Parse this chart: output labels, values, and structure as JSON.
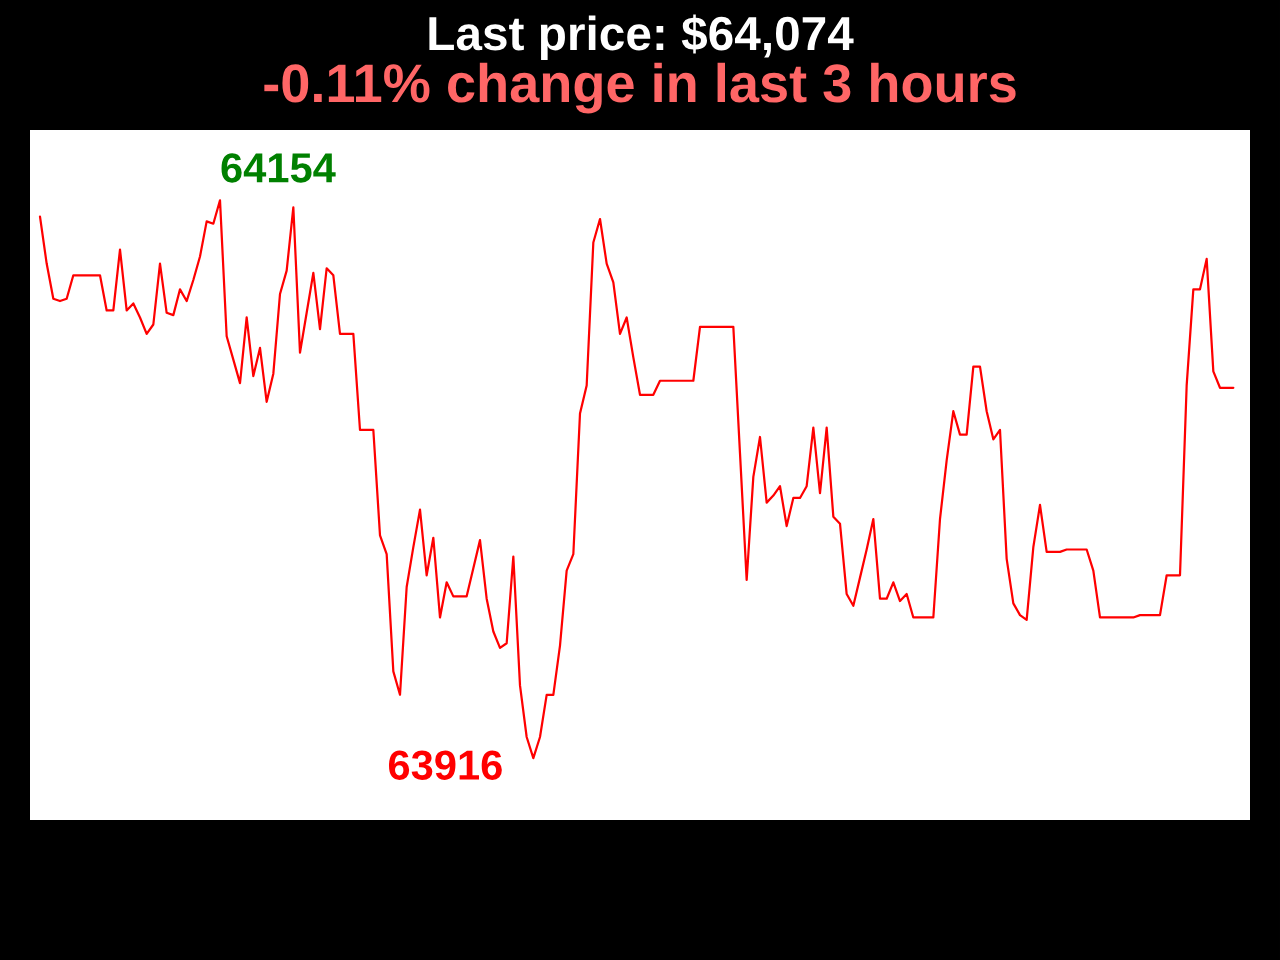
{
  "chart_data": {
    "type": "line",
    "title": "Last price: $64,074",
    "subtitle": "-0.11% change in last 3 hours",
    "tick_labels": false,
    "categories": [
      null,
      null,
      null,
      null,
      null,
      null,
      null,
      null,
      null,
      null,
      null,
      null,
      null,
      null,
      null,
      null,
      null,
      null,
      null,
      null,
      null,
      null,
      null,
      null,
      null,
      null,
      null,
      null,
      null,
      null,
      null,
      null,
      null,
      null,
      null,
      null,
      null,
      null,
      null,
      null,
      null,
      null,
      null,
      null,
      null,
      null,
      null,
      null,
      null,
      null,
      null,
      null,
      null,
      null,
      null,
      null,
      null,
      null,
      null,
      null,
      null,
      null,
      null,
      null,
      null,
      null,
      null,
      null,
      null,
      null,
      null,
      null,
      null,
      null,
      null,
      null,
      null,
      null,
      null,
      null,
      null,
      null,
      null,
      null,
      null,
      null,
      null,
      null,
      null,
      null,
      null,
      null,
      null,
      null,
      null,
      null,
      null,
      null,
      null,
      null,
      null,
      null,
      null,
      null,
      null,
      null,
      null,
      null,
      null,
      null,
      null,
      null,
      null,
      null,
      null,
      null,
      null,
      null,
      null,
      null,
      null,
      null,
      null,
      null,
      null,
      null,
      null,
      null,
      null,
      null,
      null,
      null,
      null,
      null,
      null,
      null,
      null,
      null,
      null,
      null,
      null,
      null,
      null,
      null,
      null,
      null,
      null,
      null,
      null,
      null,
      null,
      null,
      null,
      null,
      null,
      null,
      null,
      null,
      null,
      null,
      null,
      null,
      null,
      null,
      null,
      null,
      null,
      null,
      null,
      null,
      null,
      null,
      null,
      null,
      null,
      null,
      null,
      null,
      null,
      null
    ],
    "series": [
      {
        "color": "#ff0000",
        "values": [
          64147,
          64127,
          64112,
          64111,
          64112,
          64122,
          64122,
          64122,
          64122,
          64122,
          64107,
          64107,
          64133,
          64107,
          64110,
          64104,
          64097,
          64101,
          64127,
          64106,
          64105,
          64116,
          64111,
          64120,
          64130,
          64145,
          64144,
          64154,
          64096,
          64086,
          64076,
          64104,
          64079,
          64091,
          64068,
          64080,
          64114,
          64124,
          64151,
          64089,
          64106,
          64123,
          64099,
          64125,
          64122,
          64097,
          64097,
          64097,
          64056,
          64056,
          64056,
          64011,
          64003,
          63953,
          63943,
          63989,
          64006,
          64022,
          63994,
          64010,
          63976,
          63991,
          63985,
          63985,
          63985,
          63997,
          64009,
          63984,
          63970,
          63963,
          63965,
          64002,
          63947,
          63925,
          63916,
          63925,
          63943,
          63943,
          63964,
          63996,
          64003,
          64063,
          64075,
          64136,
          64146,
          64127,
          64119,
          64097,
          64104,
          64087,
          64071,
          64071,
          64071,
          64077,
          64077,
          64077,
          64077,
          64077,
          64077,
          64100,
          64100,
          64100,
          64100,
          64100,
          64100,
          64046,
          63992,
          64036,
          64053,
          64025,
          64028,
          64032,
          64015,
          64027,
          64027,
          64032,
          64057,
          64029,
          64057,
          64019,
          64016,
          63986,
          63981,
          63993,
          64005,
          64018,
          63984,
          63984,
          63991,
          63983,
          63986,
          63976,
          63976,
          63976,
          63976,
          64018,
          64043,
          64064,
          64054,
          64054,
          64083,
          64083,
          64064,
          64052,
          64056,
          64001,
          63982,
          63977,
          63975,
          64006,
          64024,
          64004,
          64004,
          64004,
          64005,
          64005,
          64005,
          64005,
          63996,
          63976,
          63976,
          63976,
          63976,
          63976,
          63976,
          63977,
          63977,
          63977,
          63977,
          63994,
          63994,
          63994,
          64075,
          64116,
          64116,
          64129,
          64081,
          64074,
          64074,
          64074
        ],
        "value_labels": [
          null,
          null,
          null,
          null,
          null,
          null,
          null,
          null,
          null,
          null,
          null,
          null,
          null,
          null,
          null,
          null,
          null,
          null,
          null,
          null,
          null,
          null,
          null,
          null,
          null,
          null,
          null,
          "64154",
          null,
          null,
          null,
          null,
          null,
          null,
          null,
          null,
          null,
          null,
          null,
          null,
          null,
          null,
          null,
          null,
          null,
          null,
          null,
          null,
          null,
          null,
          null,
          null,
          null,
          null,
          null,
          null,
          null,
          null,
          null,
          null,
          null,
          null,
          null,
          null,
          null,
          null,
          null,
          null,
          null,
          null,
          null,
          null,
          null,
          null,
          "63916",
          null,
          null,
          null,
          null,
          null,
          null,
          null,
          null,
          null,
          null,
          null,
          null,
          null,
          null,
          null,
          null,
          null,
          null,
          null,
          null,
          null,
          null,
          null,
          null,
          null,
          null,
          null,
          null,
          null,
          null,
          null,
          null,
          null,
          null,
          null,
          null,
          null,
          null,
          null,
          null,
          null,
          null,
          null,
          null,
          null,
          null,
          null,
          null,
          null,
          null,
          null,
          null,
          null,
          null,
          null,
          null,
          null,
          null,
          null,
          null,
          null,
          null,
          null,
          null,
          null,
          null,
          null,
          null,
          null,
          null,
          null,
          null,
          null,
          null,
          null,
          null,
          null,
          null,
          null,
          null,
          null,
          null,
          null,
          null,
          null,
          null,
          null,
          null,
          null,
          null,
          null,
          null,
          null,
          null,
          null,
          null,
          null,
          null,
          null,
          null,
          null,
          null,
          null,
          null,
          null
        ]
      }
    ]
  }
}
